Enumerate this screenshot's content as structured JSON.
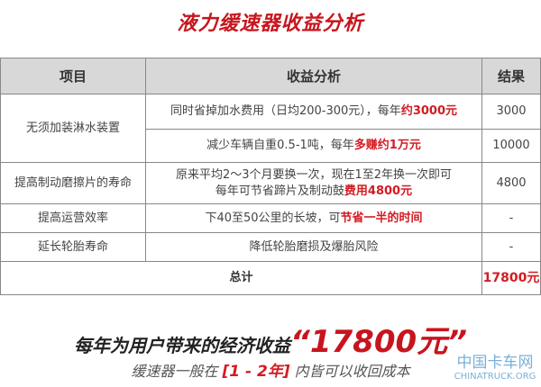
{
  "title": "液力缓速器收益分析",
  "headers": [
    "项目",
    "收益分析",
    "结果"
  ],
  "rows": [
    {
      "item": "无须加装淋水装置",
      "a1": "同时省掉加水费用（日均200-300元），每年",
      "h1": "约3000元",
      "r1": "3000",
      "a2": "减少车辆自重0.5-1吨，每年",
      "h2": "多赚约1万元",
      "r2": "10000"
    },
    {
      "item": "提高制动磨擦片的寿命",
      "a1": "原来平均2～3个月要换一次，现在1至2年换一次即可",
      "a2": "每年可节省蹄片及制动鼓",
      "h2": "费用4800元",
      "r": "4800"
    },
    {
      "item": "提高运营效率",
      "a": "下40至50公里的长坡，可",
      "h": "节省一半的时间",
      "r": "-"
    },
    {
      "item": "延长轮胎寿命",
      "a": "降低轮胎磨损及爆胎风险",
      "r": "-"
    }
  ],
  "total": {
    "label": "总计",
    "value": "17800元"
  },
  "banner": {
    "line1": "每年为用户带来的经济收益",
    "amount": "“17800元”",
    "line2a": "缓速器一般在",
    "line2h": "[1 - 2年]",
    "line2b": "内皆可以收回成本"
  },
  "watermark": {
    "cn": "中国卡车网",
    "en": "CHINATRUCK.ORG"
  }
}
